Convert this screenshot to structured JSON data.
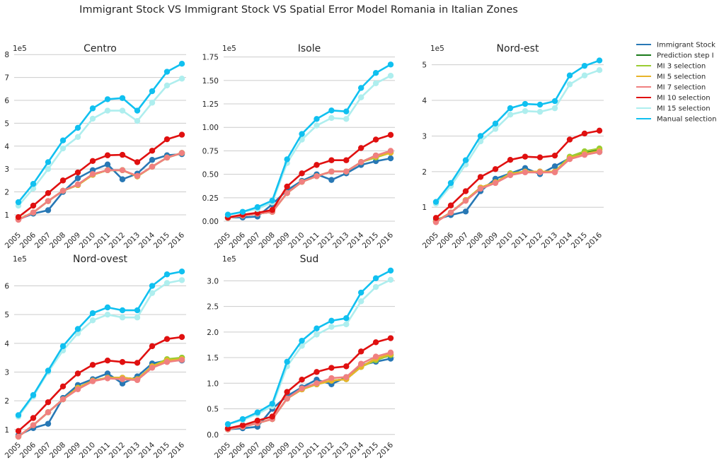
{
  "suptitle": "Immigrant Stock VS Immigrant Stock VS Spatial Error Model Romania in Italian Zones",
  "legend": [
    {
      "name": "Immigrant Stock",
      "color": "#2878b5"
    },
    {
      "name": "Prediction step I",
      "color": "#1a7a1a"
    },
    {
      "name": "MI 3 selection",
      "color": "#9acd32"
    },
    {
      "name": "MI 5 selection",
      "color": "#e8b42a"
    },
    {
      "name": "MI 7 selection",
      "color": "#f08080"
    },
    {
      "name": "MI 10 selection",
      "color": "#e01010"
    },
    {
      "name": "MI 15 selection",
      "color": "#aeeeee"
    },
    {
      "name": "Manual selection",
      "color": "#10c0f0"
    }
  ],
  "chart_data": [
    {
      "type": "line",
      "title": "Centro",
      "offset_label": "1e5",
      "x": [
        "2005",
        "2006",
        "2007",
        "2008",
        "2009",
        "2010",
        "2011",
        "2012",
        "2013",
        "2014",
        "2015",
        "2016"
      ],
      "ylim": [
        0.35,
        8.1
      ],
      "yticks": [
        1,
        2,
        3,
        4,
        5,
        6,
        7,
        8
      ],
      "tick_labels": [
        "1",
        "2",
        "3",
        "4",
        "5",
        "6",
        "7",
        "8"
      ],
      "series": [
        {
          "name": "Immigrant Stock",
          "values": [
            0.8,
            1.05,
            1.2,
            2.0,
            2.6,
            2.95,
            3.2,
            2.55,
            2.8,
            3.4,
            3.6,
            3.65
          ]
        },
        {
          "name": "Prediction step I",
          "values": [
            0.8,
            1.1,
            1.6,
            2.05,
            2.3,
            2.75,
            2.95,
            2.95,
            2.68,
            3.1,
            3.5,
            3.7
          ]
        },
        {
          "name": "MI 3 selection",
          "values": [
            0.8,
            1.1,
            1.6,
            2.05,
            2.3,
            2.75,
            2.95,
            2.95,
            2.68,
            3.1,
            3.5,
            3.7
          ]
        },
        {
          "name": "MI 5 selection",
          "values": [
            0.8,
            1.1,
            1.6,
            2.05,
            2.3,
            2.75,
            2.95,
            2.95,
            2.68,
            3.1,
            3.5,
            3.7
          ]
        },
        {
          "name": "MI 7 selection",
          "values": [
            0.78,
            1.1,
            1.6,
            2.05,
            2.33,
            2.78,
            2.95,
            2.95,
            2.7,
            3.1,
            3.5,
            3.7
          ]
        },
        {
          "name": "MI 10 selection",
          "values": [
            0.9,
            1.4,
            1.95,
            2.5,
            2.85,
            3.35,
            3.6,
            3.62,
            3.3,
            3.8,
            4.3,
            4.5
          ]
        },
        {
          "name": "MI 15 selection",
          "values": [
            1.4,
            2.15,
            3.0,
            3.9,
            4.4,
            5.2,
            5.55,
            5.55,
            5.1,
            5.9,
            6.65,
            6.95
          ]
        },
        {
          "name": "Manual selection",
          "values": [
            1.55,
            2.35,
            3.3,
            4.25,
            4.8,
            5.65,
            6.05,
            6.1,
            5.55,
            6.4,
            7.25,
            7.6
          ]
        }
      ]
    },
    {
      "type": "line",
      "title": "Isole",
      "offset_label": "1e5",
      "x": [
        "2005",
        "2006",
        "2007",
        "2008",
        "2009",
        "2010",
        "2011",
        "2012",
        "2013",
        "2014",
        "2015",
        "2016"
      ],
      "ylim": [
        -0.09,
        1.8
      ],
      "yticks": [
        0,
        0.25,
        0.5,
        0.75,
        1.0,
        1.25,
        1.5,
        1.75
      ],
      "tick_labels": [
        "0.00",
        "0.25",
        "0.50",
        "0.75",
        "1.00",
        "1.25",
        "1.50",
        "1.75"
      ],
      "series": [
        {
          "name": "Immigrant Stock",
          "values": [
            0.04,
            0.04,
            0.05,
            0.18,
            0.33,
            0.43,
            0.5,
            0.44,
            0.51,
            0.6,
            0.64,
            0.67
          ]
        },
        {
          "name": "Prediction step I",
          "values": [
            0.035,
            0.06,
            0.08,
            0.1,
            0.3,
            0.42,
            0.48,
            0.53,
            0.53,
            0.63,
            0.7,
            0.74
          ]
        },
        {
          "name": "MI 3 selection",
          "values": [
            0.035,
            0.06,
            0.08,
            0.1,
            0.3,
            0.42,
            0.48,
            0.53,
            0.53,
            0.63,
            0.68,
            0.73
          ]
        },
        {
          "name": "MI 5 selection",
          "values": [
            0.035,
            0.06,
            0.08,
            0.1,
            0.3,
            0.42,
            0.48,
            0.53,
            0.53,
            0.63,
            0.69,
            0.73
          ]
        },
        {
          "name": "MI 7 selection",
          "values": [
            0.035,
            0.06,
            0.08,
            0.1,
            0.3,
            0.42,
            0.48,
            0.53,
            0.53,
            0.63,
            0.7,
            0.75
          ]
        },
        {
          "name": "MI 10 selection",
          "values": [
            0.04,
            0.07,
            0.09,
            0.12,
            0.37,
            0.51,
            0.6,
            0.65,
            0.65,
            0.78,
            0.87,
            0.92
          ]
        },
        {
          "name": "MI 15 selection",
          "values": [
            0.07,
            0.1,
            0.13,
            0.2,
            0.62,
            0.87,
            1.02,
            1.1,
            1.09,
            1.32,
            1.47,
            1.55
          ]
        },
        {
          "name": "Manual selection",
          "values": [
            0.07,
            0.1,
            0.15,
            0.22,
            0.66,
            0.93,
            1.09,
            1.18,
            1.17,
            1.42,
            1.58,
            1.67
          ]
        }
      ]
    },
    {
      "type": "line",
      "title": "Nord-est",
      "offset_label": "1e5",
      "x": [
        "2005",
        "2006",
        "2007",
        "2008",
        "2009",
        "2010",
        "2011",
        "2012",
        "2013",
        "2014",
        "2015",
        "2016"
      ],
      "ylim": [
        0.37,
        5.35
      ],
      "yticks": [
        1,
        2,
        3,
        4,
        5
      ],
      "tick_labels": [
        "1",
        "2",
        "3",
        "4",
        "5"
      ],
      "series": [
        {
          "name": "Immigrant Stock",
          "values": [
            0.65,
            0.78,
            0.88,
            1.45,
            1.8,
            1.95,
            2.1,
            1.93,
            2.15,
            2.38,
            2.48,
            2.55
          ]
        },
        {
          "name": "Prediction step I",
          "values": [
            0.6,
            0.85,
            1.2,
            1.55,
            1.7,
            1.93,
            2.0,
            2.0,
            2.0,
            2.4,
            2.55,
            2.62
          ]
        },
        {
          "name": "MI 3 selection",
          "values": [
            0.6,
            0.85,
            1.2,
            1.55,
            1.7,
            1.95,
            2.0,
            2.0,
            2.0,
            2.42,
            2.57,
            2.65
          ]
        },
        {
          "name": "MI 5 selection",
          "values": [
            0.6,
            0.85,
            1.2,
            1.55,
            1.7,
            1.93,
            2.0,
            2.0,
            2.0,
            2.38,
            2.5,
            2.58
          ]
        },
        {
          "name": "MI 7 selection",
          "values": [
            0.58,
            0.85,
            1.18,
            1.52,
            1.68,
            1.9,
            1.98,
            1.98,
            1.98,
            2.35,
            2.47,
            2.55
          ]
        },
        {
          "name": "MI 10 selection",
          "values": [
            0.7,
            1.05,
            1.45,
            1.85,
            2.07,
            2.33,
            2.42,
            2.4,
            2.45,
            2.9,
            3.07,
            3.15
          ]
        },
        {
          "name": "MI 15 selection",
          "values": [
            1.1,
            1.6,
            2.2,
            2.85,
            3.2,
            3.6,
            3.7,
            3.68,
            3.78,
            4.45,
            4.7,
            4.85
          ]
        },
        {
          "name": "Manual selection",
          "values": [
            1.15,
            1.68,
            2.32,
            3.0,
            3.35,
            3.78,
            3.9,
            3.88,
            3.98,
            4.7,
            4.97,
            5.12
          ]
        }
      ]
    },
    {
      "type": "line",
      "title": "Nord-ovest",
      "offset_label": "1e5",
      "x": [
        "2005",
        "2006",
        "2007",
        "2008",
        "2009",
        "2010",
        "2011",
        "2012",
        "2013",
        "2014",
        "2015",
        "2016"
      ],
      "ylim": [
        0.65,
        6.8
      ],
      "yticks": [
        1,
        2,
        3,
        4,
        5,
        6
      ],
      "tick_labels": [
        "1",
        "2",
        "3",
        "4",
        "5",
        "6"
      ],
      "series": [
        {
          "name": "Immigrant Stock",
          "values": [
            0.8,
            1.05,
            1.2,
            2.1,
            2.55,
            2.75,
            2.95,
            2.6,
            2.85,
            3.3,
            3.4,
            3.4
          ]
        },
        {
          "name": "Prediction step I",
          "values": [
            0.75,
            1.15,
            1.6,
            2.05,
            2.45,
            2.7,
            2.8,
            2.8,
            2.75,
            3.2,
            3.42,
            3.5
          ]
        },
        {
          "name": "MI 3 selection",
          "values": [
            0.75,
            1.15,
            1.6,
            2.05,
            2.45,
            2.7,
            2.8,
            2.8,
            2.75,
            3.2,
            3.45,
            3.5
          ]
        },
        {
          "name": "MI 5 selection",
          "values": [
            0.75,
            1.15,
            1.6,
            2.05,
            2.45,
            2.7,
            2.8,
            2.8,
            2.75,
            3.2,
            3.4,
            3.45
          ]
        },
        {
          "name": "MI 7 selection",
          "values": [
            0.75,
            1.15,
            1.6,
            2.05,
            2.4,
            2.68,
            2.78,
            2.75,
            2.72,
            3.15,
            3.35,
            3.42
          ]
        },
        {
          "name": "MI 10 selection",
          "values": [
            0.95,
            1.4,
            1.95,
            2.5,
            2.95,
            3.25,
            3.4,
            3.35,
            3.32,
            3.9,
            4.15,
            4.22
          ]
        },
        {
          "name": "MI 15 selection",
          "values": [
            1.45,
            2.15,
            3.0,
            3.75,
            4.35,
            4.8,
            5.0,
            4.9,
            4.9,
            5.75,
            6.1,
            6.2
          ]
        },
        {
          "name": "Manual selection",
          "values": [
            1.5,
            2.2,
            3.05,
            3.9,
            4.5,
            5.05,
            5.25,
            5.15,
            5.15,
            6.0,
            6.4,
            6.5
          ]
        }
      ]
    },
    {
      "type": "line",
      "title": "Sud",
      "offset_label": "1e5",
      "x": [
        "2005",
        "2006",
        "2007",
        "2008",
        "2009",
        "2010",
        "2011",
        "2012",
        "2013",
        "2014",
        "2015",
        "2016"
      ],
      "ylim": [
        -0.1,
        3.35
      ],
      "yticks": [
        0,
        0.5,
        1.0,
        1.5,
        2.0,
        2.5,
        3.0
      ],
      "tick_labels": [
        "0.0",
        "0.5",
        "1.0",
        "1.5",
        "2.0",
        "2.5",
        "3.0"
      ],
      "series": [
        {
          "name": "Immigrant Stock",
          "values": [
            0.1,
            0.12,
            0.15,
            0.5,
            0.75,
            0.92,
            1.07,
            0.98,
            1.12,
            1.35,
            1.42,
            1.48
          ]
        },
        {
          "name": "Prediction step I",
          "values": [
            0.1,
            0.15,
            0.22,
            0.3,
            0.7,
            0.88,
            0.98,
            1.05,
            1.08,
            1.32,
            1.48,
            1.55
          ]
        },
        {
          "name": "MI 3 selection",
          "values": [
            0.1,
            0.15,
            0.22,
            0.3,
            0.7,
            0.88,
            0.98,
            1.05,
            1.08,
            1.32,
            1.45,
            1.55
          ]
        },
        {
          "name": "MI 5 selection",
          "values": [
            0.1,
            0.15,
            0.22,
            0.3,
            0.7,
            0.88,
            0.98,
            1.05,
            1.08,
            1.32,
            1.48,
            1.57
          ]
        },
        {
          "name": "MI 7 selection",
          "values": [
            0.1,
            0.15,
            0.22,
            0.3,
            0.7,
            0.9,
            1.0,
            1.1,
            1.12,
            1.38,
            1.52,
            1.6
          ]
        },
        {
          "name": "MI 10 selection",
          "values": [
            0.12,
            0.18,
            0.27,
            0.35,
            0.83,
            1.07,
            1.22,
            1.3,
            1.33,
            1.62,
            1.8,
            1.88
          ]
        },
        {
          "name": "MI 15 selection",
          "values": [
            0.2,
            0.28,
            0.4,
            0.55,
            1.33,
            1.73,
            1.95,
            2.1,
            2.15,
            2.6,
            2.88,
            3.02
          ]
        },
        {
          "name": "Manual selection",
          "values": [
            0.2,
            0.3,
            0.43,
            0.6,
            1.42,
            1.83,
            2.07,
            2.22,
            2.27,
            2.77,
            3.05,
            3.2
          ]
        }
      ]
    }
  ]
}
